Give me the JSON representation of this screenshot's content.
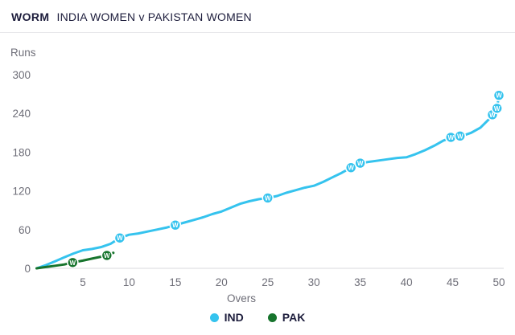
{
  "header": {
    "title": "WORM",
    "subtitle": "INDIA WOMEN v PAKISTAN WOMEN"
  },
  "axes": {
    "y_label": "Runs",
    "x_label": "Overs"
  },
  "chart_data": {
    "type": "line",
    "title": "WORM — INDIA WOMEN v PAKISTAN WOMEN",
    "xlabel": "Overs",
    "ylabel": "Runs",
    "xlim": [
      0,
      50
    ],
    "ylim": [
      0,
      300
    ],
    "x_ticks": [
      5,
      10,
      15,
      20,
      25,
      30,
      35,
      40,
      45,
      50
    ],
    "y_ticks": [
      0,
      60,
      120,
      180,
      240,
      300
    ],
    "grid": false,
    "legend_position": "bottom",
    "wicket_marker_label": "W",
    "series": [
      {
        "name": "IND",
        "color": "#35c3ee",
        "points": [
          [
            0,
            0
          ],
          [
            1,
            5
          ],
          [
            2,
            11
          ],
          [
            3,
            17
          ],
          [
            4,
            23
          ],
          [
            5,
            28
          ],
          [
            6,
            30
          ],
          [
            7,
            33
          ],
          [
            8,
            38
          ],
          [
            9,
            47
          ],
          [
            10,
            52
          ],
          [
            11,
            54
          ],
          [
            12,
            57
          ],
          [
            13,
            60
          ],
          [
            14,
            63
          ],
          [
            15,
            67
          ],
          [
            16,
            71
          ],
          [
            17,
            75
          ],
          [
            18,
            79
          ],
          [
            19,
            84
          ],
          [
            20,
            88
          ],
          [
            21,
            94
          ],
          [
            22,
            100
          ],
          [
            23,
            104
          ],
          [
            24,
            107
          ],
          [
            25,
            109
          ],
          [
            26,
            112
          ],
          [
            27,
            117
          ],
          [
            28,
            121
          ],
          [
            29,
            125
          ],
          [
            30,
            128
          ],
          [
            31,
            134
          ],
          [
            32,
            141
          ],
          [
            33,
            148
          ],
          [
            34,
            156
          ],
          [
            35,
            163
          ],
          [
            36,
            165
          ],
          [
            37,
            167
          ],
          [
            38,
            169
          ],
          [
            39,
            171
          ],
          [
            40,
            172
          ],
          [
            41,
            177
          ],
          [
            42,
            183
          ],
          [
            43,
            190
          ],
          [
            44,
            198
          ],
          [
            45,
            203
          ],
          [
            46,
            205
          ],
          [
            47,
            210
          ],
          [
            48,
            218
          ],
          [
            49,
            232
          ],
          [
            49.3,
            238
          ],
          [
            49.8,
            248
          ],
          [
            50,
            268
          ]
        ],
        "wickets": [
          [
            9,
            47
          ],
          [
            15,
            67
          ],
          [
            25,
            109
          ],
          [
            34,
            156
          ],
          [
            35,
            163
          ],
          [
            44.8,
            203
          ],
          [
            45.8,
            205
          ],
          [
            49.3,
            238
          ],
          [
            49.8,
            248
          ],
          [
            50,
            268
          ]
        ]
      },
      {
        "name": "PAK",
        "color": "#17742d",
        "points": [
          [
            0,
            0
          ],
          [
            1,
            2
          ],
          [
            2,
            4
          ],
          [
            3,
            6
          ],
          [
            3.9,
            9
          ],
          [
            5,
            12
          ],
          [
            6,
            15
          ],
          [
            7,
            18
          ],
          [
            7.6,
            20
          ],
          [
            8.3,
            24
          ]
        ],
        "wickets": [
          [
            3.9,
            9
          ],
          [
            7.6,
            20
          ]
        ]
      }
    ]
  }
}
